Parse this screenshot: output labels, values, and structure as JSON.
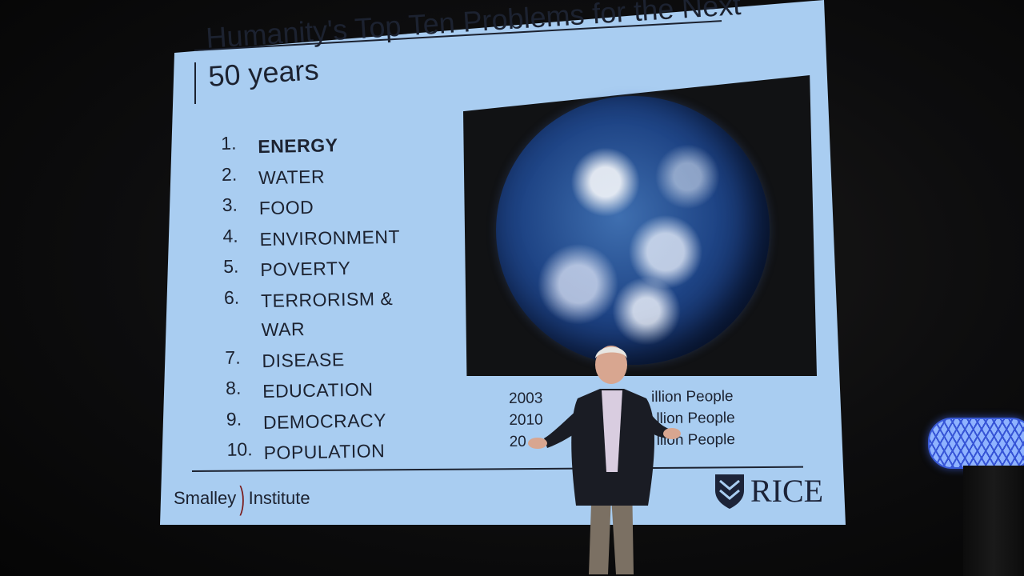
{
  "slide": {
    "title": "Humanity's Top Ten Problems for the Next 50 years",
    "problems": [
      {
        "num": "1.",
        "label": "ENERGY"
      },
      {
        "num": "2.",
        "label": "WATER"
      },
      {
        "num": "3.",
        "label": "FOOD"
      },
      {
        "num": "4.",
        "label": "ENVIRONMENT"
      },
      {
        "num": "5.",
        "label": "POVERTY"
      },
      {
        "num": "6.",
        "label": "TERRORISM & WAR"
      },
      {
        "num": "7.",
        "label": "DISEASE"
      },
      {
        "num": "8.",
        "label": "EDUCATION"
      },
      {
        "num": "9.",
        "label": "DEMOCRACY"
      },
      {
        "num": "10.",
        "label": "POPULATION"
      }
    ],
    "population_stats": [
      {
        "year": "2003",
        "label": "illion People"
      },
      {
        "year": "2010",
        "label": "llion People"
      },
      {
        "year": "20",
        "label": "llion People"
      }
    ],
    "logos": {
      "left_part1": "Smalley",
      "left_part2": "Institute",
      "right": "RICE"
    }
  },
  "colors": {
    "slide_background": "#a9cdf1",
    "slide_text": "#1c2230",
    "nanotube": "#3654d6"
  }
}
